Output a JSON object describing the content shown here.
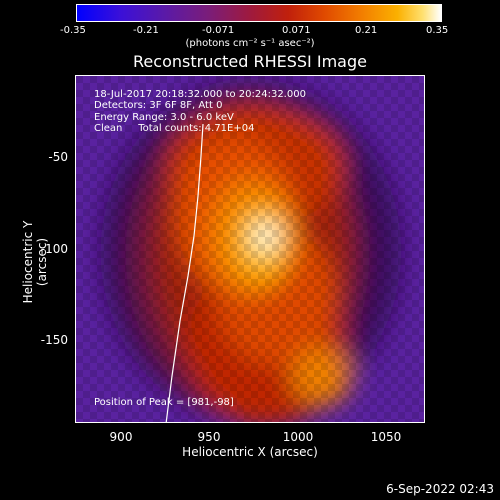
{
  "colorbar": {
    "ticks": [
      "-0.35",
      "-0.21",
      "-0.071",
      "0.071",
      "0.21",
      "0.35"
    ],
    "unit": "(photons cm⁻² s⁻¹ asec⁻²)"
  },
  "title": "Reconstructed RHESSI Image",
  "info": {
    "time": "18-Jul-2017 20:18:32.000 to 20:24:32.000",
    "detectors": "Detectors: 3F 6F 8F, Att 0",
    "energy": "Energy Range: 3.0 - 6.0 keV",
    "clean": "Clean     Total counts: 4.71E+04",
    "peak": "Position of Peak = [981,-98]"
  },
  "axes": {
    "xlabel": "Heliocentric X (arcsec)",
    "ylabel": "Heliocentric Y (arcsec)",
    "xticks": [
      "900",
      "950",
      "1000",
      "1050"
    ],
    "yticks": [
      "-50",
      "-100",
      "-150"
    ]
  },
  "timestamp": "6-Sep-2022 02:43",
  "colors": {
    "background": "#000000",
    "text": "#ffffff"
  }
}
